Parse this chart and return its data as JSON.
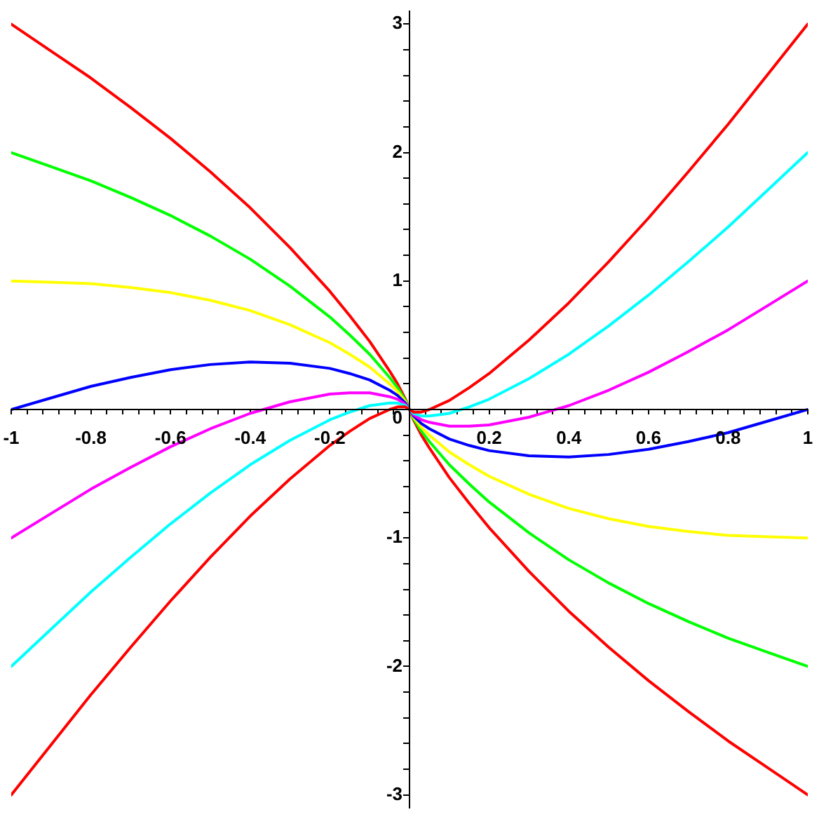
{
  "chart_data": {
    "type": "line",
    "marker": "none",
    "x": [
      -1,
      -0.9,
      -0.8,
      -0.7,
      -0.6,
      -0.5,
      -0.4,
      -0.3,
      -0.2,
      -0.15,
      -0.1,
      -0.05,
      -0.03,
      -0.02,
      -0.01,
      0,
      0.01,
      0.02,
      0.03,
      0.05,
      0.1,
      0.15,
      0.2,
      0.3,
      0.4,
      0.5,
      0.6,
      0.7,
      0.8,
      0.9,
      1
    ],
    "series": [
      {
        "color": "#ff0000",
        "values": [
          -3,
          -2.61,
          -2.22,
          -1.85,
          -1.49,
          -1.15,
          -0.83,
          -0.54,
          -0.28,
          -0.17,
          -0.07,
          0,
          0.02,
          0.02,
          0.02,
          0,
          -0.02,
          -0.02,
          -0.02,
          0,
          0.07,
          0.17,
          0.28,
          0.54,
          0.83,
          1.15,
          1.49,
          1.85,
          2.22,
          2.61,
          3
        ]
      },
      {
        "color": "#00ffff",
        "values": [
          -2,
          -1.71,
          -1.42,
          -1.15,
          -0.89,
          -0.65,
          -0.43,
          -0.24,
          -0.08,
          -0.02,
          0.03,
          0.05,
          0.05,
          0.04,
          0.03,
          0,
          -0.03,
          -0.04,
          -0.05,
          -0.05,
          -0.03,
          0.02,
          0.08,
          0.24,
          0.43,
          0.65,
          0.89,
          1.15,
          1.42,
          1.71,
          2
        ]
      },
      {
        "color": "#ff00ff",
        "values": [
          -1,
          -0.81,
          -0.62,
          -0.45,
          -0.29,
          -0.15,
          -0.03,
          0.06,
          0.12,
          0.13,
          0.13,
          0.1,
          0.08,
          0.06,
          0.04,
          0,
          -0.04,
          -0.06,
          -0.08,
          -0.1,
          -0.13,
          -0.13,
          -0.12,
          -0.06,
          0.03,
          0.15,
          0.29,
          0.45,
          0.62,
          0.81,
          1
        ]
      },
      {
        "color": "#0000ff",
        "values": [
          0,
          0.09,
          0.18,
          0.25,
          0.31,
          0.35,
          0.37,
          0.36,
          0.32,
          0.28,
          0.23,
          0.15,
          0.11,
          0.08,
          0.05,
          0,
          -0.05,
          -0.08,
          -0.11,
          -0.15,
          -0.23,
          -0.28,
          -0.32,
          -0.36,
          -0.37,
          -0.35,
          -0.31,
          -0.25,
          -0.18,
          -0.09,
          0
        ]
      },
      {
        "color": "#ffff00",
        "values": [
          1,
          0.99,
          0.98,
          0.95,
          0.91,
          0.85,
          0.77,
          0.66,
          0.52,
          0.43,
          0.33,
          0.2,
          0.14,
          0.1,
          0.06,
          0,
          -0.06,
          -0.1,
          -0.14,
          -0.2,
          -0.33,
          -0.43,
          -0.52,
          -0.66,
          -0.77,
          -0.85,
          -0.91,
          -0.95,
          -0.98,
          -0.99,
          -1
        ]
      },
      {
        "color": "#00ff00",
        "values": [
          2,
          1.89,
          1.78,
          1.65,
          1.51,
          1.35,
          1.17,
          0.96,
          0.72,
          0.58,
          0.43,
          0.25,
          0.17,
          0.12,
          0.07,
          0,
          -0.07,
          -0.12,
          -0.17,
          -0.25,
          -0.43,
          -0.58,
          -0.72,
          -0.96,
          -1.17,
          -1.35,
          -1.51,
          -1.65,
          -1.78,
          -1.89,
          -2
        ]
      },
      {
        "color": "#ff0000",
        "values": [
          3,
          2.79,
          2.58,
          2.35,
          2.11,
          1.85,
          1.57,
          1.26,
          0.92,
          0.73,
          0.53,
          0.3,
          0.2,
          0.14,
          0.08,
          0,
          -0.08,
          -0.14,
          -0.2,
          -0.3,
          -0.53,
          -0.73,
          -0.92,
          -1.26,
          -1.57,
          -1.85,
          -2.11,
          -2.35,
          -2.58,
          -2.79,
          -3
        ]
      }
    ],
    "xlim": [
      -1,
      1
    ],
    "ylim": [
      -3.1,
      3.1
    ],
    "xticks": [
      -1,
      {
        "value": -0.96,
        "label": null
      },
      {
        "value": -0.92,
        "label": null
      },
      {
        "value": -0.88,
        "label": null
      },
      {
        "value": -0.84,
        "label": null
      },
      -0.8,
      {
        "value": -0.76,
        "label": null
      },
      {
        "value": -0.72,
        "label": null
      },
      {
        "value": -0.68,
        "label": null
      },
      {
        "value": -0.64,
        "label": null
      },
      -0.6,
      {
        "value": -0.56,
        "label": null
      },
      {
        "value": -0.52,
        "label": null
      },
      {
        "value": -0.48,
        "label": null
      },
      {
        "value": -0.44,
        "label": null
      },
      -0.4,
      {
        "value": -0.36,
        "label": null
      },
      {
        "value": -0.32,
        "label": null
      },
      {
        "value": -0.28,
        "label": null
      },
      {
        "value": -0.24,
        "label": null
      },
      -0.2,
      {
        "value": -0.16,
        "label": null
      },
      {
        "value": -0.12,
        "label": null
      },
      {
        "value": -0.08,
        "label": null
      },
      {
        "value": -0.04,
        "label": null
      },
      {
        "value": 0.04,
        "label": null
      },
      {
        "value": 0.08,
        "label": null
      },
      {
        "value": 0.12,
        "label": null
      },
      {
        "value": 0.16,
        "label": null
      },
      0.2,
      {
        "value": 0.24,
        "label": null
      },
      {
        "value": 0.28,
        "label": null
      },
      {
        "value": 0.32,
        "label": null
      },
      {
        "value": 0.36,
        "label": null
      },
      0.4,
      {
        "value": 0.44,
        "label": null
      },
      {
        "value": 0.48,
        "label": null
      },
      {
        "value": 0.52,
        "label": null
      },
      {
        "value": 0.56,
        "label": null
      },
      0.6,
      {
        "value": 0.64,
        "label": null
      },
      {
        "value": 0.68,
        "label": null
      },
      {
        "value": 0.72,
        "label": null
      },
      {
        "value": 0.76,
        "label": null
      },
      0.8,
      {
        "value": 0.84,
        "label": null
      },
      {
        "value": 0.88,
        "label": null
      },
      {
        "value": 0.92,
        "label": null
      },
      {
        "value": 0.96,
        "label": null
      },
      1
    ],
    "yticks": [
      -3,
      {
        "value": -2.8,
        "label": null
      },
      {
        "value": -2.6,
        "label": null
      },
      {
        "value": -2.4,
        "label": null
      },
      {
        "value": -2.2,
        "label": null
      },
      -2,
      {
        "value": -1.8,
        "label": null
      },
      {
        "value": -1.6,
        "label": null
      },
      {
        "value": -1.4,
        "label": null
      },
      {
        "value": -1.2,
        "label": null
      },
      -1,
      {
        "value": -0.8,
        "label": null
      },
      {
        "value": -0.6,
        "label": null
      },
      {
        "value": -0.4,
        "label": null
      },
      {
        "value": -0.2,
        "label": null
      },
      0,
      {
        "value": 0.2,
        "label": null
      },
      {
        "value": 0.4,
        "label": null
      },
      {
        "value": 0.6,
        "label": null
      },
      {
        "value": 0.8,
        "label": null
      },
      1,
      {
        "value": 1.2,
        "label": null
      },
      {
        "value": 1.4,
        "label": null
      },
      {
        "value": 1.6,
        "label": null
      },
      {
        "value": 1.8,
        "label": null
      },
      2,
      {
        "value": 2.2,
        "label": null
      },
      {
        "value": 2.4,
        "label": null
      },
      {
        "value": 2.6,
        "label": null
      },
      {
        "value": 2.8,
        "label": null
      },
      3
    ]
  }
}
